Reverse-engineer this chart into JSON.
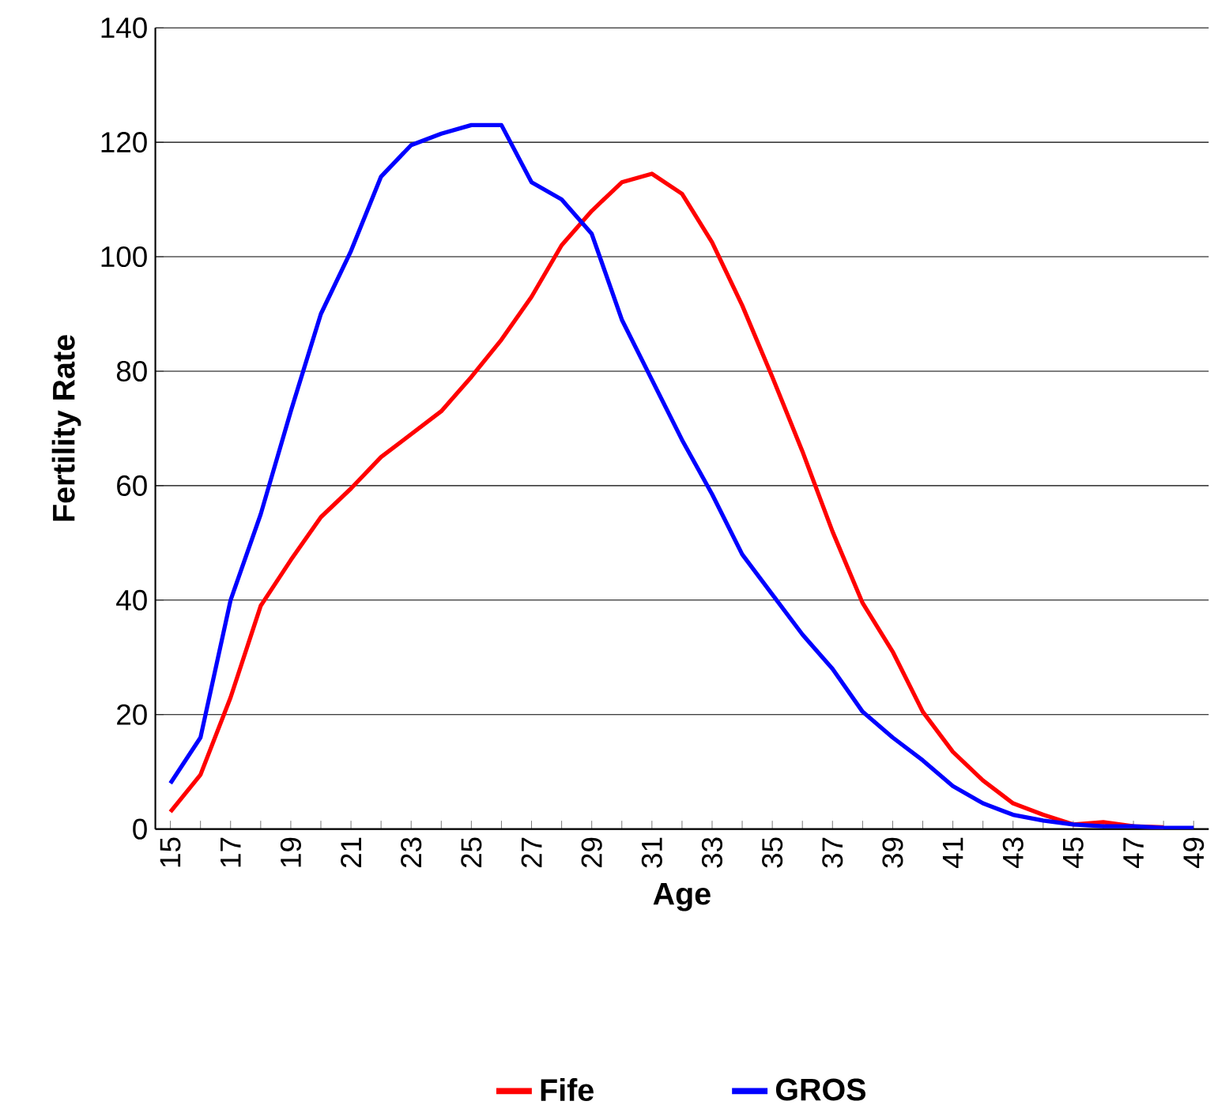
{
  "chart_data": {
    "type": "line",
    "xlabel": "Age",
    "ylabel": "Fertility Rate",
    "categories": [
      "15",
      null,
      "17",
      null,
      "19",
      null,
      "21",
      null,
      "23",
      null,
      "25",
      null,
      "27",
      null,
      "29",
      null,
      "31",
      null,
      "33",
      null,
      "35",
      null,
      "37",
      null,
      "39",
      null,
      "41",
      null,
      "43",
      null,
      "45",
      null,
      "47",
      null,
      "49"
    ],
    "series": [
      {
        "name": "Fife",
        "color": "#ff0000",
        "values": [
          3,
          9.5,
          23,
          39,
          47,
          54.5,
          59.5,
          65,
          69,
          73,
          79,
          85.5,
          93,
          102,
          108,
          113,
          114.5,
          111,
          102.5,
          91.5,
          79,
          66,
          52,
          39.5,
          31,
          20.5,
          13.5,
          8.5,
          4.5,
          2.5,
          0.8,
          1.2,
          0.5,
          0.3,
          null
        ]
      },
      {
        "name": "GROS",
        "color": "#0000ff",
        "values": [
          8,
          16,
          40,
          55,
          73,
          90,
          101,
          114,
          119.5,
          121.5,
          123,
          123,
          113,
          110,
          104,
          89,
          78.5,
          68,
          58.5,
          48,
          41,
          34,
          28,
          20.5,
          16,
          12,
          7.5,
          4.5,
          2.5,
          1.5,
          0.8,
          0.5,
          0.5,
          0.2,
          0.2
        ]
      }
    ],
    "ylim": [
      0,
      140
    ],
    "yticks": [
      0,
      20,
      40,
      60,
      80,
      100,
      120,
      140
    ],
    "grid": "y",
    "legend": "bottom"
  }
}
